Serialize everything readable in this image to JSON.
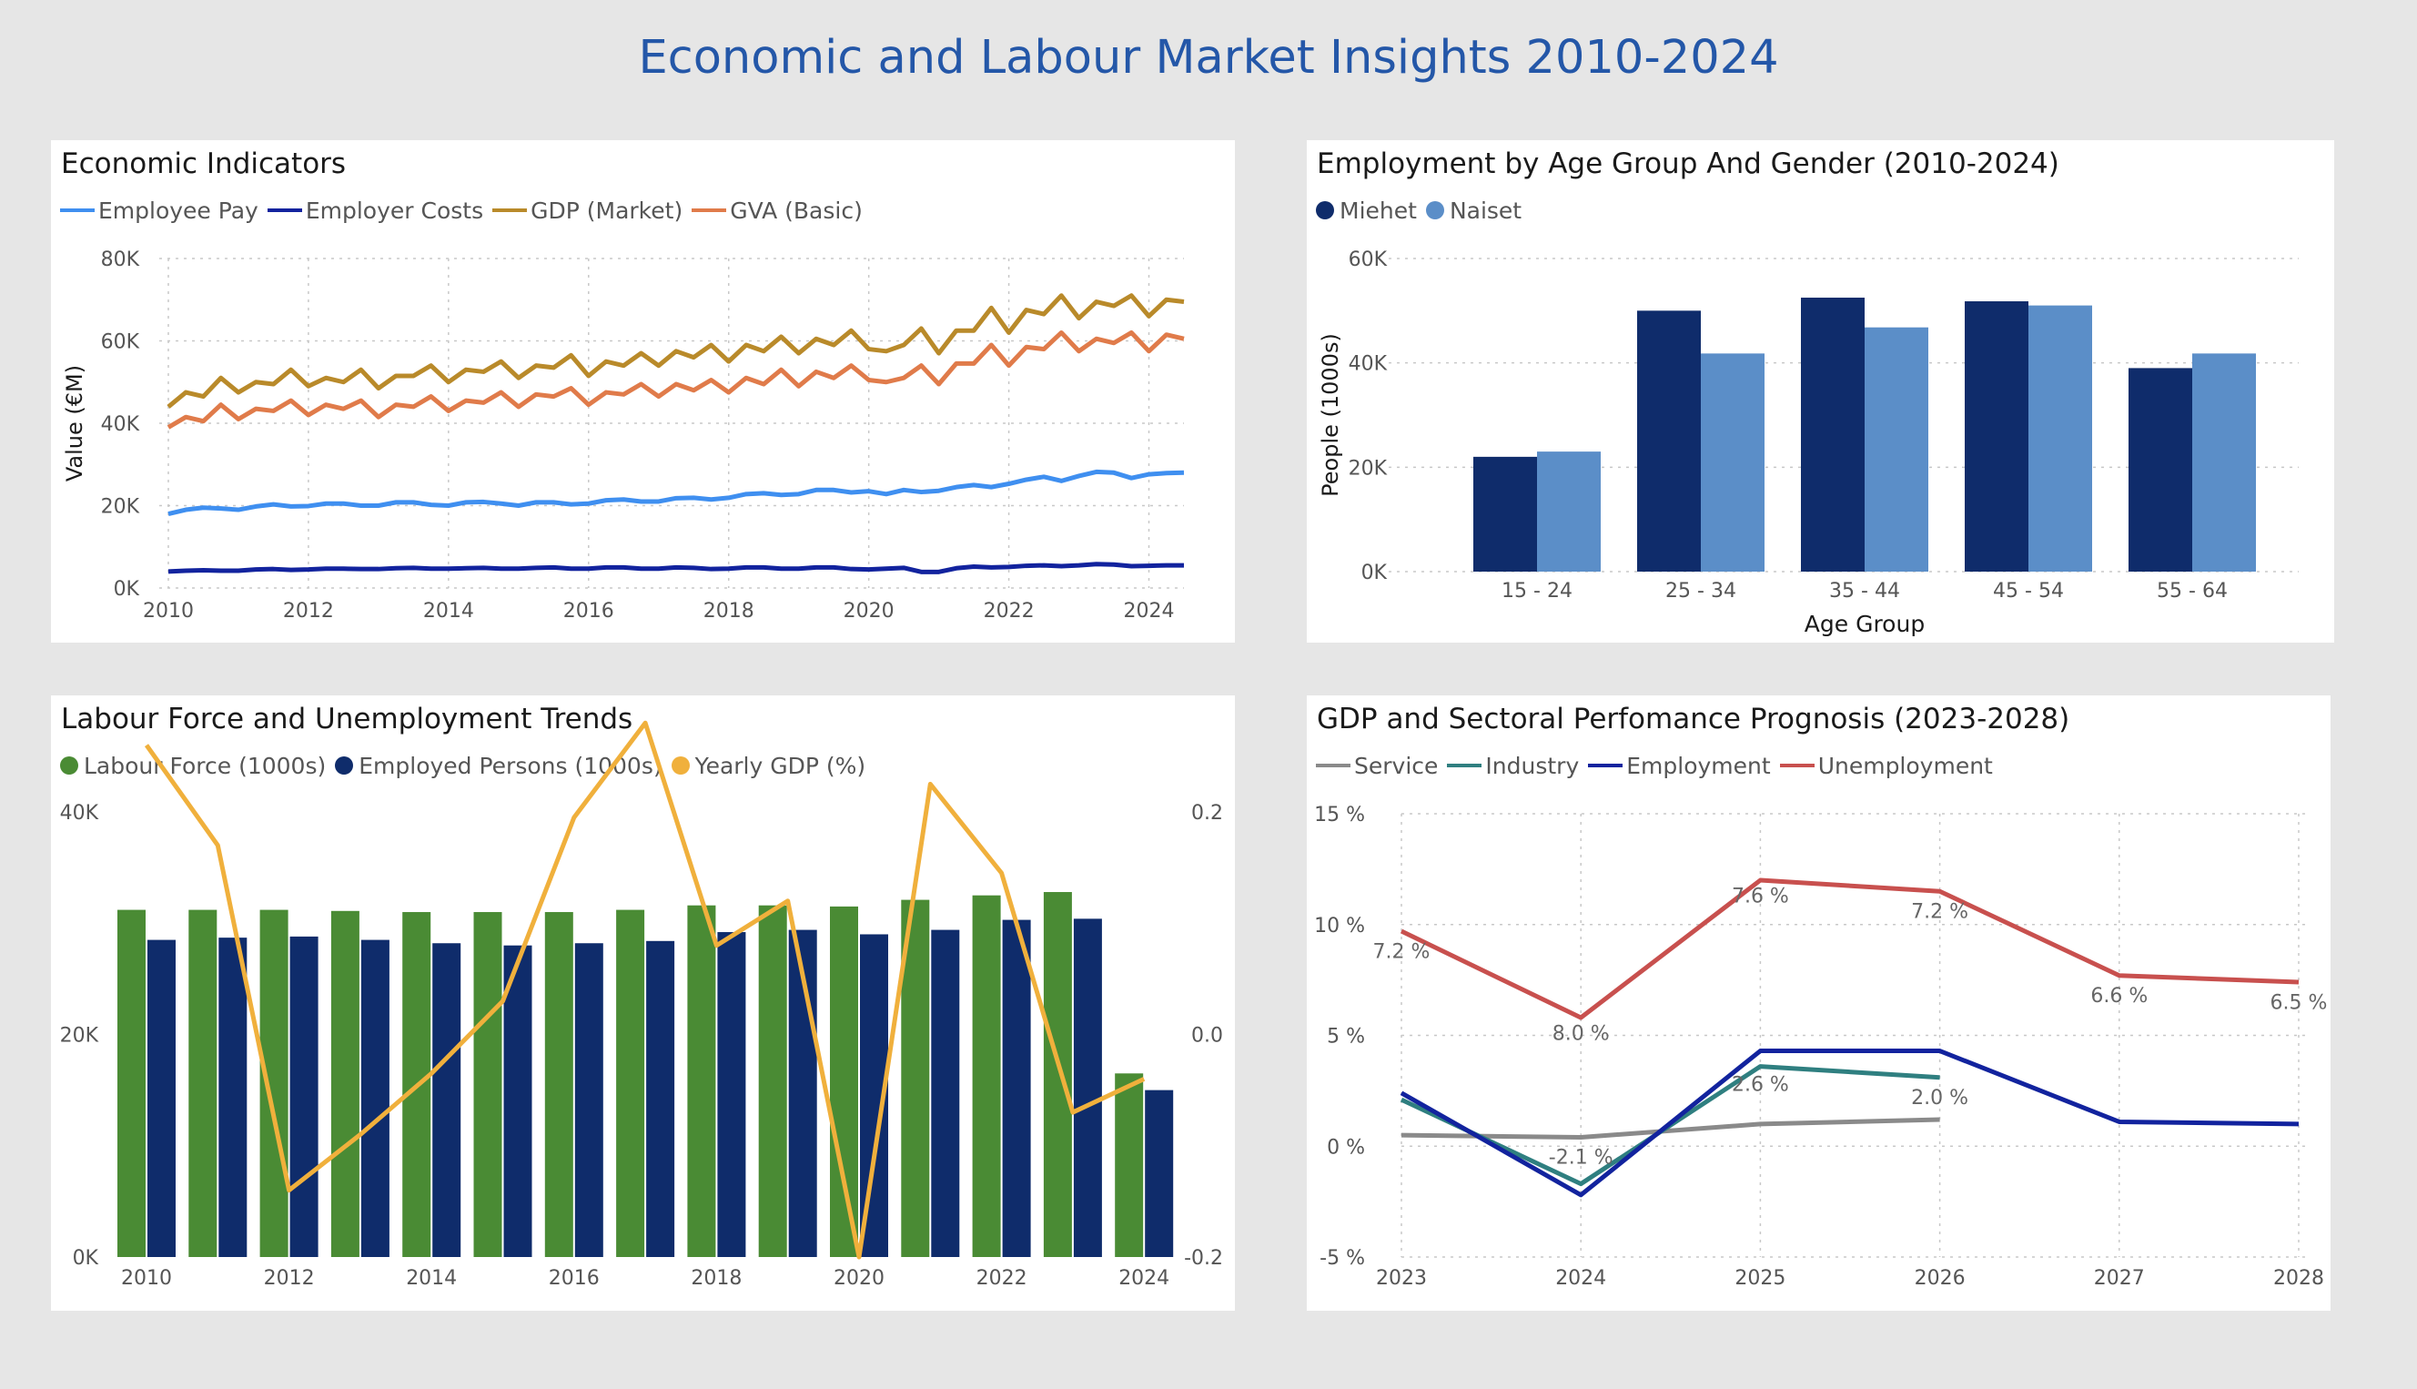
{
  "page_title": "Economic and Labour Market Insights 2010-2024",
  "chart_data": [
    {
      "id": "econ",
      "type": "line",
      "title": "Economic Indicators",
      "xlabel": "",
      "ylabel": "Value (€M)",
      "ylim": [
        0,
        80000
      ],
      "yticks": [
        "0K",
        "20K",
        "40K",
        "60K",
        "80K"
      ],
      "xticks": [
        "2010",
        "2012",
        "2014",
        "2016",
        "2018",
        "2020",
        "2022",
        "2024"
      ],
      "grid": true,
      "legend_position": "top-left",
      "x_start": 2010,
      "x_step": 0.25,
      "series": [
        {
          "name": "Employee Pay",
          "color": "#3f8ff0",
          "values": [
            18000,
            19000,
            19500,
            19300,
            19000,
            19800,
            20300,
            19800,
            19900,
            20500,
            20500,
            20000,
            20000,
            20800,
            20800,
            20200,
            20000,
            20800,
            20900,
            20500,
            20000,
            20800,
            20800,
            20300,
            20500,
            21300,
            21500,
            21000,
            21000,
            21800,
            21900,
            21500,
            21900,
            22800,
            23000,
            22600,
            22800,
            23800,
            23800,
            23200,
            23500,
            22800,
            23800,
            23300,
            23600,
            24500,
            25000,
            24500,
            25300,
            26300,
            27000,
            26000,
            27200,
            28200,
            28000,
            26700,
            27600,
            27900,
            28000
          ]
        },
        {
          "name": "Employer Costs",
          "color": "#12239e",
          "values": [
            4000,
            4200,
            4300,
            4200,
            4200,
            4500,
            4600,
            4400,
            4500,
            4700,
            4700,
            4600,
            4600,
            4800,
            4900,
            4700,
            4700,
            4800,
            4900,
            4700,
            4700,
            4900,
            5000,
            4700,
            4700,
            5000,
            5000,
            4700,
            4700,
            5000,
            4900,
            4600,
            4700,
            5000,
            5000,
            4700,
            4700,
            5000,
            5000,
            4600,
            4500,
            4700,
            4900,
            3900,
            3900,
            4800,
            5200,
            5000,
            5100,
            5400,
            5500,
            5300,
            5500,
            5800,
            5700,
            5300,
            5400,
            5500,
            5500
          ]
        },
        {
          "name": "GDP (Market)",
          "color": "#b98a2a",
          "values": [
            44000,
            47500,
            46500,
            51000,
            47500,
            50000,
            49500,
            53000,
            49000,
            51000,
            50000,
            53000,
            48500,
            51500,
            51500,
            54000,
            50000,
            53000,
            52500,
            55000,
            51000,
            54000,
            53500,
            56500,
            51500,
            55000,
            54000,
            57000,
            54000,
            57500,
            56000,
            59000,
            55000,
            59000,
            57500,
            61000,
            57000,
            60500,
            59000,
            62500,
            58000,
            57500,
            59000,
            63000,
            57000,
            62500,
            62500,
            68000,
            62000,
            67500,
            66500,
            71000,
            65500,
            69500,
            68500,
            71000,
            66000,
            70000,
            69500
          ]
        },
        {
          "name": "GVA (Basic)",
          "color": "#e07b4a",
          "values": [
            39000,
            41500,
            40500,
            44500,
            41000,
            43500,
            43000,
            45500,
            42000,
            44500,
            43500,
            45500,
            41500,
            44500,
            44000,
            46500,
            43000,
            45500,
            45000,
            47500,
            44000,
            47000,
            46500,
            48500,
            44500,
            47500,
            47000,
            49500,
            46500,
            49500,
            48000,
            50500,
            47500,
            51000,
            49500,
            53000,
            49000,
            52500,
            51000,
            54000,
            50500,
            50000,
            51000,
            54000,
            49500,
            54500,
            54500,
            59000,
            54000,
            58500,
            58000,
            62000,
            57500,
            60500,
            59500,
            62000,
            57500,
            61500,
            60500
          ]
        }
      ]
    },
    {
      "id": "age",
      "type": "bar",
      "title": "Employment by Age Group And Gender (2010-2024)",
      "xlabel": "Age Group",
      "ylabel": "People (1000s)",
      "ylim": [
        0,
        60000
      ],
      "yticks": [
        "0K",
        "20K",
        "40K",
        "60K"
      ],
      "grid": true,
      "legend_position": "top-left",
      "categories": [
        "15 - 24",
        "25 - 34",
        "35 - 44",
        "45 - 54",
        "55 - 64"
      ],
      "series": [
        {
          "name": "Miehet",
          "color": "#0f2c6b",
          "values": [
            22000,
            50000,
            52500,
            51800,
            39000
          ]
        },
        {
          "name": "Naiset",
          "color": "#5b8ec8",
          "values": [
            23000,
            41800,
            46800,
            51000,
            41800
          ]
        }
      ]
    },
    {
      "id": "labour",
      "type": "bar",
      "title": "Labour Force and Unemployment Trends",
      "xlabel": "",
      "ylabel": "",
      "ylim": [
        0,
        40000
      ],
      "y2lim": [
        -0.2,
        0.2
      ],
      "yticks": [
        "0K",
        "20K",
        "40K"
      ],
      "y2ticks": [
        "-0.2",
        "0.0",
        "0.2"
      ],
      "xticks": [
        "2010",
        "2012",
        "2014",
        "2016",
        "2018",
        "2020",
        "2022",
        "2024"
      ],
      "grid": false,
      "legend_position": "top-left",
      "categories": [
        "2010",
        "2011",
        "2012",
        "2013",
        "2014",
        "2015",
        "2016",
        "2017",
        "2018",
        "2019",
        "2020",
        "2021",
        "2022",
        "2023",
        "2024"
      ],
      "series": [
        {
          "name": "Labour Force (1000s)",
          "type": "bar",
          "color": "#4a8b34",
          "values": [
            31200,
            31200,
            31200,
            31100,
            31000,
            31000,
            31000,
            31200,
            31600,
            31600,
            31500,
            32100,
            32500,
            32800,
            16500
          ]
        },
        {
          "name": "Employed Persons (1000s)",
          "type": "bar",
          "color": "#0f2c6b",
          "values": [
            28500,
            28700,
            28800,
            28500,
            28200,
            28000,
            28200,
            28400,
            29200,
            29400,
            29000,
            29400,
            30300,
            30400,
            15000
          ]
        },
        {
          "name": "Yearly GDP (%)",
          "type": "line",
          "axis": "right",
          "color": "#f0b03c",
          "values": [
            0.26,
            0.17,
            -0.14,
            -0.09,
            -0.035,
            0.03,
            0.195,
            0.28,
            0.08,
            0.12,
            -0.2,
            0.225,
            0.145,
            -0.07,
            -0.04
          ]
        }
      ]
    },
    {
      "id": "prog",
      "type": "line",
      "title": "GDP and Sectoral Perfomance Prognosis (2023-2028)",
      "xlabel": "",
      "ylabel": "",
      "ylim": [
        -5,
        15
      ],
      "yticks": [
        "-5 %",
        "0 %",
        "5 %",
        "10 %",
        "15 %"
      ],
      "grid": true,
      "legend_position": "top-left",
      "categories": [
        "2023",
        "2024",
        "2025",
        "2026",
        "2027",
        "2028"
      ],
      "series": [
        {
          "name": "Service",
          "color": "#8a8a8a",
          "values": [
            0.5,
            0.4,
            1.0,
            1.2,
            null,
            null
          ]
        },
        {
          "name": "Industry",
          "color": "#2f7f80",
          "values": [
            2.1,
            -1.7,
            3.6,
            3.1,
            null,
            null
          ]
        },
        {
          "name": "Employment",
          "color": "#12239e",
          "values": [
            2.4,
            -2.2,
            4.3,
            4.3,
            1.1,
            1.0
          ]
        },
        {
          "name": "Unemployment",
          "color": "#c8504e",
          "values": [
            9.7,
            5.8,
            12.0,
            11.5,
            7.7,
            7.4
          ]
        }
      ],
      "data_labels": [
        "7.2 %",
        "8.0 %",
        "7.6 %",
        "7.2 %",
        "6.6 %",
        "6.5 %",
        "-2.1 %",
        "2.6 %",
        "2.0 %"
      ]
    }
  ]
}
